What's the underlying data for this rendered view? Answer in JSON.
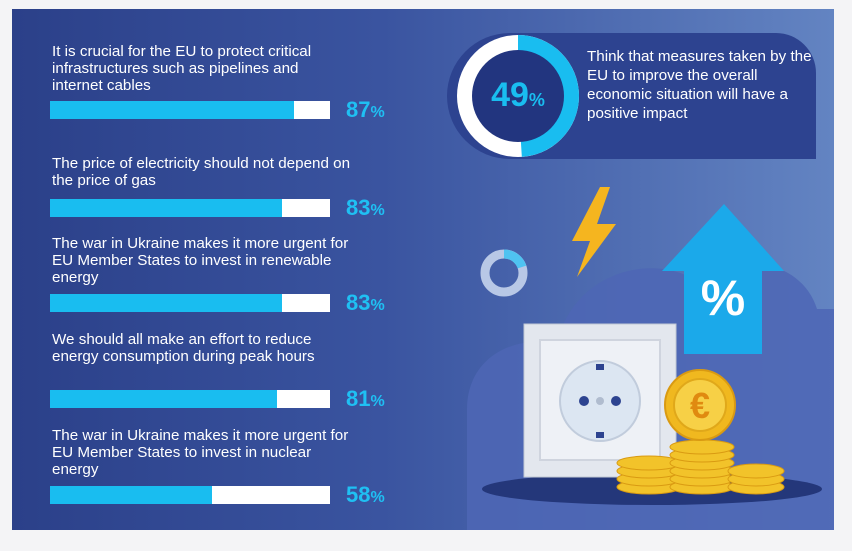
{
  "chart_data": {
    "type": "bar",
    "orientation": "horizontal",
    "xlim": [
      0,
      100
    ],
    "unit": "%",
    "categories": [
      "It is crucial for the EU to protect critical infrastructures such as pipelines and internet cables",
      "The price of electricity should not depend on the price of gas",
      "The war in Ukraine makes it more urgent for EU Member States to invest in renewable energy",
      "We should all make an effort to reduce energy consumption during peak hours",
      "The war in Ukraine makes it more urgent for EU Member States to invest in nuclear energy"
    ],
    "values": [
      87,
      83,
      83,
      81,
      58
    ],
    "callout": {
      "value": 49,
      "unit": "%",
      "text": "Think that measures taken by the EU to improve the overall economic situation will have a positive impact"
    }
  },
  "icons": {
    "percent_sign": "%",
    "euro_sign": "€"
  },
  "colors": {
    "bar_fill": "#19bdf0",
    "bar_track": "#ffffff",
    "value_text": "#1fc0f3",
    "background_dark": "#2b4089",
    "background_light": "#6384c2",
    "callout_bg": "#2d4390"
  }
}
